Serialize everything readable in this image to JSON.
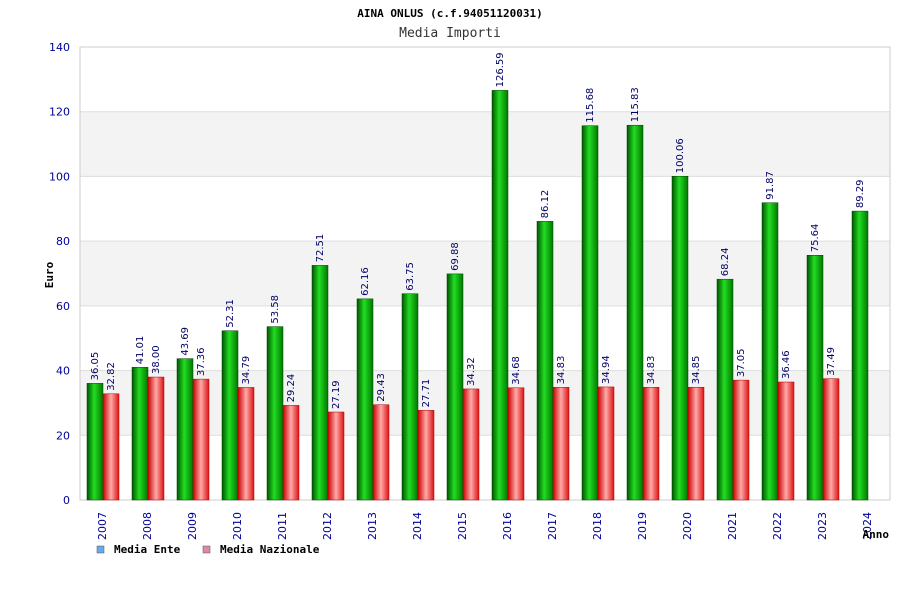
{
  "chart_data": {
    "type": "bar",
    "title": "AINA ONLUS (c.f.94051120031)",
    "subtitle": "Media Importi",
    "xlabel": "Anno",
    "ylabel": "Euro",
    "ylim": [
      0,
      140
    ],
    "yticks": [
      0,
      20,
      40,
      60,
      80,
      100,
      120,
      140
    ],
    "grid": true,
    "legend_position": "bottom-left",
    "categories": [
      "2007",
      "2008",
      "2009",
      "2010",
      "2011",
      "2012",
      "2013",
      "2014",
      "2015",
      "2016",
      "2017",
      "2018",
      "2019",
      "2020",
      "2021",
      "2022",
      "2023",
      "2024"
    ],
    "series": [
      {
        "name": "Media Ente",
        "color": "#00bb00",
        "legend_color": "#66aaee",
        "values": [
          36.05,
          41.01,
          43.69,
          52.31,
          53.58,
          72.51,
          62.16,
          63.75,
          69.88,
          126.59,
          86.12,
          115.68,
          115.83,
          100.06,
          68.24,
          91.87,
          75.64,
          89.29
        ],
        "labels": [
          "36.05",
          "41.01",
          "43.69",
          "52.31",
          "53.58",
          "72.51",
          "62.16",
          "63.75",
          "69.88",
          "126.59",
          "86.12",
          "115.68",
          "115.83",
          "100.06",
          "68.24",
          "91.87",
          "75.64",
          "89.29"
        ]
      },
      {
        "name": "Media Nazionale",
        "color": "#ee2222",
        "legend_color": "#dd88aa",
        "values": [
          32.82,
          38.0,
          37.36,
          34.79,
          29.24,
          27.19,
          29.43,
          27.71,
          34.32,
          34.68,
          34.83,
          34.94,
          34.83,
          34.85,
          37.05,
          36.46,
          37.49,
          null
        ],
        "labels": [
          "32.82",
          "38.00",
          "37.36",
          "34.79",
          "29.24",
          "27.19",
          "29.43",
          "27.71",
          "34.32",
          "34.68",
          "34.83",
          "34.94",
          "34.83",
          "34.85",
          "37.05",
          "36.46",
          "37.49",
          ""
        ]
      }
    ]
  }
}
